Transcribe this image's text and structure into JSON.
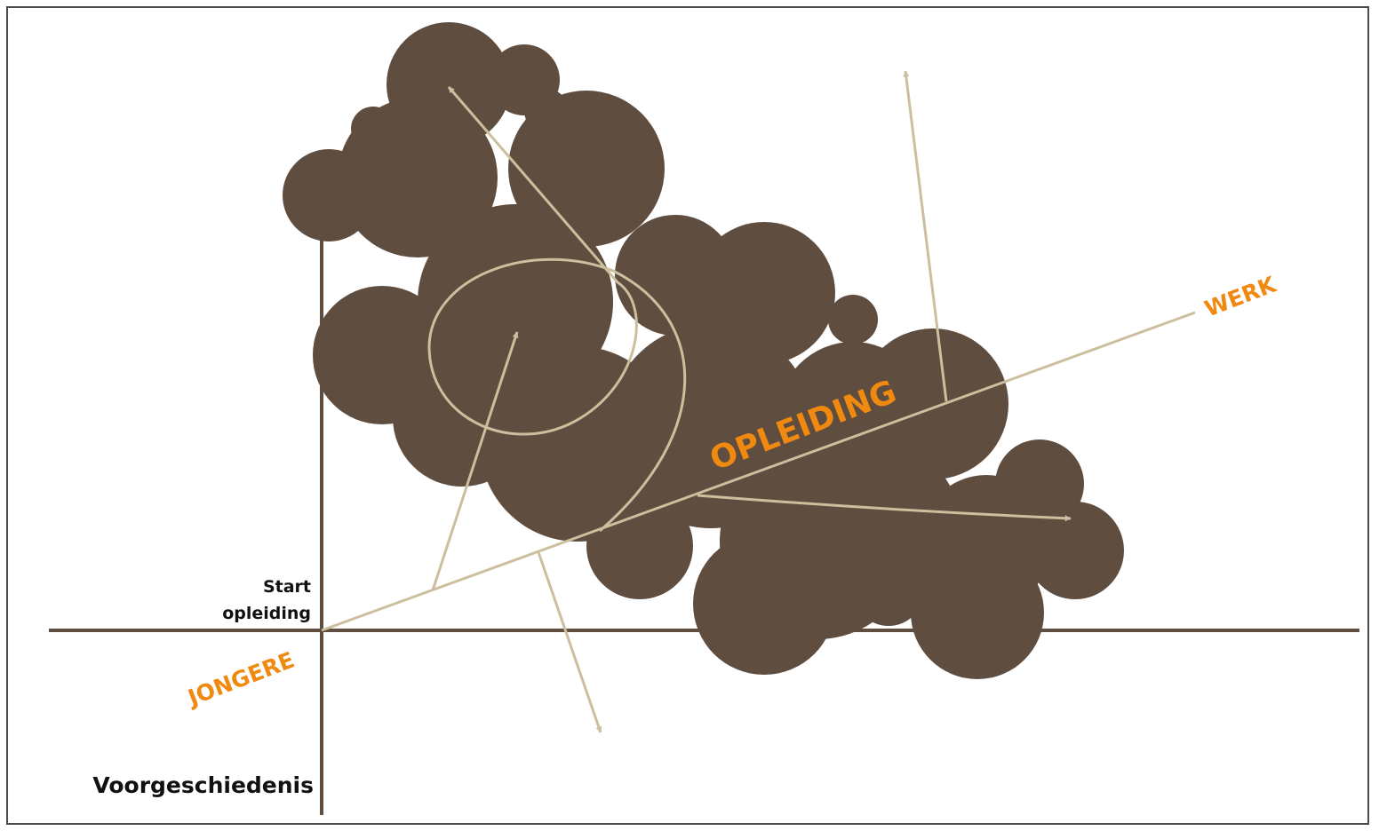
{
  "labels": {
    "werk": "WERK",
    "opleiding": "OPLEIDING",
    "jongere": "JONGERE",
    "start_line1": "Start",
    "start_line2": "opleiding",
    "voorgeschiedenis": "Voorgeschiedenis"
  },
  "colors": {
    "cloud": "#5f4d40",
    "axis": "#5f4d40",
    "arrow": "#cbbf9d",
    "label_orange": "#f0890f",
    "label_dark": "#111111"
  }
}
